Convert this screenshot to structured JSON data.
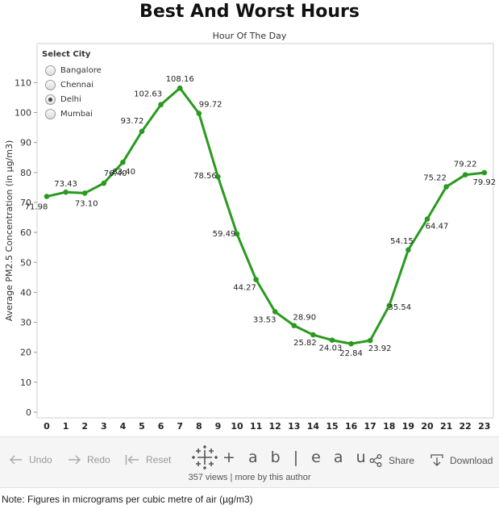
{
  "chart_data": {
    "type": "line",
    "title": "Best And Worst Hours",
    "subtitle": "Hour Of The Day",
    "xlabel": "Hour Of The Day",
    "ylabel": "Average PM2.5 Concentration (in µg/m3)",
    "x": [
      "0",
      "1",
      "2",
      "3",
      "4",
      "5",
      "6",
      "7",
      "8",
      "9",
      "10",
      "11",
      "12",
      "13",
      "14",
      "15",
      "16",
      "17",
      "18",
      "19",
      "20",
      "21",
      "22",
      "23"
    ],
    "series": [
      {
        "name": "Delhi",
        "values": [
          71.98,
          73.43,
          73.1,
          76.4,
          83.4,
          93.72,
          102.63,
          108.16,
          99.72,
          78.56,
          59.49,
          44.27,
          33.53,
          28.9,
          25.82,
          24.03,
          22.84,
          23.92,
          35.54,
          54.15,
          64.47,
          75.22,
          79.22,
          79.92
        ],
        "labels": [
          "71.98",
          "73.43",
          "73.10",
          "76.40",
          "83.40",
          "93.72",
          "102.63",
          "108.16",
          "99.72",
          "78.56",
          "59.49",
          "44.27",
          "33.53",
          "28.90",
          "25.82",
          "24.03",
          "22.84",
          "23.92",
          "35.54",
          "54.15",
          "64.47",
          "75.22",
          "79.22",
          "79.92"
        ],
        "color": "#2a9a1f"
      }
    ],
    "ylim": [
      0,
      110
    ],
    "yticks": [
      "0",
      "10",
      "20",
      "30",
      "40",
      "50",
      "60",
      "70",
      "80",
      "90",
      "100",
      "110"
    ],
    "grid": false,
    "legend": "top-left"
  },
  "filter": {
    "title": "Select City",
    "options": [
      "Bangalore",
      "Chennai",
      "Delhi",
      "Mumbai"
    ],
    "selected": "Delhi"
  },
  "toolbar": {
    "undo": "Undo",
    "redo": "Redo",
    "reset": "Reset",
    "logo_text": "+ a b | e a u",
    "views": "357 views | more by this author",
    "share": "Share",
    "download": "Download"
  },
  "note": "Note: Figures in micrograms per cubic metre of air (µg/m3)"
}
